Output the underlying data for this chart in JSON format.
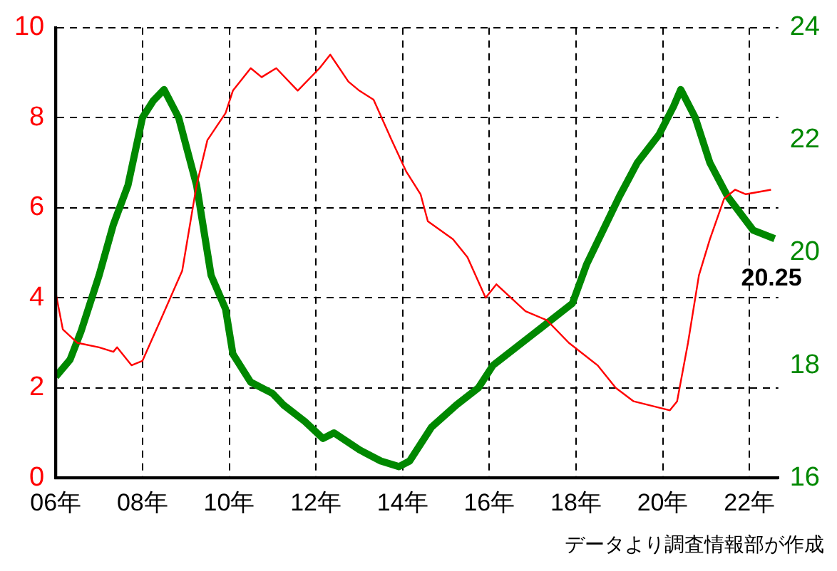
{
  "chart_data": {
    "type": "line",
    "grid": true,
    "line_style": "solid",
    "marker": "none",
    "xlim": [
      "2006-01",
      "2022-09"
    ],
    "xticks": [
      {
        "value": "2006",
        "label": "06年"
      },
      {
        "value": "2008",
        "label": "08年"
      },
      {
        "value": "2010",
        "label": "10年"
      },
      {
        "value": "2012",
        "label": "12年"
      },
      {
        "value": "2014",
        "label": "14年"
      },
      {
        "value": "2016",
        "label": "16年"
      },
      {
        "value": "2018",
        "label": "18年"
      },
      {
        "value": "2020",
        "label": "20年"
      },
      {
        "value": "2022",
        "label": "22年"
      }
    ],
    "ylim": [
      0,
      10
    ],
    "yticks": [
      0,
      2,
      4,
      6,
      8,
      10
    ],
    "y2lim": [
      16,
      24
    ],
    "y2ticks": [
      16,
      18,
      20,
      22,
      24
    ],
    "series": [
      {
        "color": "#ff0000",
        "x": [
          "2006-01",
          "2006-03",
          "2006-07",
          "2007-01",
          "2007-05",
          "2007-06",
          "2007-10",
          "2008-01",
          "2008-06",
          "2008-12",
          "2009-04",
          "2009-07",
          "2009-12",
          "2010-02",
          "2010-07",
          "2010-10",
          "2011-02",
          "2011-08",
          "2012-02",
          "2012-05",
          "2012-10",
          "2013-01",
          "2013-05",
          "2013-10",
          "2014-02",
          "2014-06",
          "2014-08",
          "2015-03",
          "2015-07",
          "2015-12",
          "2016-03",
          "2016-11",
          "2017-05",
          "2017-11",
          "2018-07",
          "2018-12",
          "2019-05",
          "2020-03",
          "2020-05",
          "2020-08",
          "2020-11",
          "2021-02",
          "2021-06",
          "2021-09",
          "2021-12",
          "2022-07"
        ],
        "values": [
          4.1,
          3.3,
          3.0,
          2.9,
          2.8,
          2.9,
          2.5,
          2.6,
          3.5,
          4.6,
          6.5,
          7.5,
          8.1,
          8.6,
          9.1,
          8.9,
          9.1,
          8.6,
          9.1,
          9.4,
          8.8,
          8.6,
          8.4,
          7.5,
          6.8,
          6.3,
          5.7,
          5.3,
          4.9,
          4.0,
          4.3,
          3.7,
          3.5,
          3.0,
          2.5,
          2.0,
          1.7,
          1.5,
          1.7,
          3.0,
          4.5,
          5.3,
          6.2,
          6.4,
          6.3,
          6.4
        ]
      },
      {
        "color": "#008800",
        "axis": "y2",
        "x": [
          "2006-01",
          "2006-05",
          "2006-08",
          "2007-01",
          "2007-05",
          "2007-09",
          "2008-01",
          "2008-04",
          "2008-07",
          "2008-11",
          "2009-04",
          "2009-08",
          "2009-12",
          "2010-02",
          "2010-07",
          "2011-01",
          "2011-04",
          "2011-10",
          "2012-03",
          "2012-06",
          "2013-01",
          "2013-07",
          "2013-12",
          "2014-03",
          "2014-09",
          "2015-04",
          "2015-10",
          "2016-02",
          "2017-02",
          "2017-12",
          "2018-04",
          "2019-01",
          "2019-06",
          "2019-12",
          "2020-04",
          "2020-06",
          "2020-10",
          "2021-02",
          "2021-07",
          "2022-02",
          "2022-08"
        ],
        "values": [
          17.8,
          18.1,
          18.6,
          19.6,
          20.5,
          21.2,
          22.4,
          22.7,
          22.9,
          22.4,
          21.2,
          19.6,
          19.0,
          18.2,
          17.7,
          17.5,
          17.3,
          17.0,
          16.7,
          16.8,
          16.5,
          16.3,
          16.2,
          16.3,
          16.9,
          17.3,
          17.6,
          18.0,
          18.6,
          19.1,
          19.8,
          21.0,
          21.6,
          22.1,
          22.6,
          22.9,
          22.4,
          21.6,
          21.0,
          20.4,
          20.25
        ]
      }
    ],
    "annotations": [
      "20.25",
      "データより調査情報部が作成"
    ]
  }
}
